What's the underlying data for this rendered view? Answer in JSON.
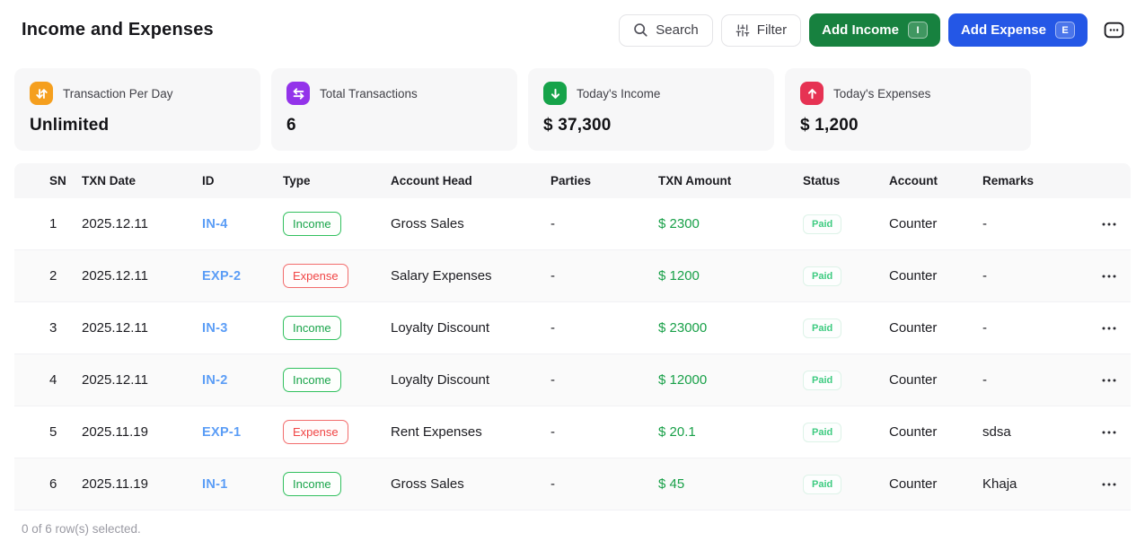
{
  "header": {
    "title": "Income and Expenses",
    "search_label": "Search",
    "filter_label": "Filter",
    "add_income_label": "Add Income",
    "add_income_shortcut": "I",
    "add_expense_label": "Add Expense",
    "add_expense_shortcut": "E"
  },
  "colors": {
    "add_income_bg": "#17813f",
    "add_expense_bg": "#2457e6",
    "id_link_blue": "#5b9df6",
    "amount_green": "#18a048",
    "income_badge_green": "#31c05e",
    "expense_badge_red": "#f04545",
    "paid_badge": "#3ecb81"
  },
  "stats": [
    {
      "label": "Transaction Per Day",
      "value": "Unlimited",
      "icon": "arrows-up-down-icon",
      "color": "#f59f1e"
    },
    {
      "label": "Total Transactions",
      "value": "6",
      "icon": "arrows-left-right-icon",
      "color": "#9333ea"
    },
    {
      "label": "Today's Income",
      "value": "$ 37,300",
      "icon": "arrow-down-icon",
      "color": "#16a34a"
    },
    {
      "label": "Today's Expenses",
      "value": "$ 1,200",
      "icon": "arrow-up-icon",
      "color": "#e63253"
    }
  ],
  "table": {
    "columns": [
      "SN",
      "TXN Date",
      "ID",
      "Type",
      "Account Head",
      "Parties",
      "TXN Amount",
      "Status",
      "Account",
      "Remarks"
    ],
    "rows": [
      {
        "sn": "1",
        "date": "2025.12.11",
        "id": "IN-4",
        "type": "Income",
        "account_head": "Gross Sales",
        "parties": "-",
        "amount": "$ 2300",
        "status": "Paid",
        "account": "Counter",
        "remarks": "-"
      },
      {
        "sn": "2",
        "date": "2025.12.11",
        "id": "EXP-2",
        "type": "Expense",
        "account_head": "Salary Expenses",
        "parties": "-",
        "amount": "$ 1200",
        "status": "Paid",
        "account": "Counter",
        "remarks": "-"
      },
      {
        "sn": "3",
        "date": "2025.12.11",
        "id": "IN-3",
        "type": "Income",
        "account_head": "Loyalty Discount",
        "parties": "-",
        "amount": "$ 23000",
        "status": "Paid",
        "account": "Counter",
        "remarks": "-"
      },
      {
        "sn": "4",
        "date": "2025.12.11",
        "id": "IN-2",
        "type": "Income",
        "account_head": "Loyalty Discount",
        "parties": "-",
        "amount": "$ 12000",
        "status": "Paid",
        "account": "Counter",
        "remarks": "-"
      },
      {
        "sn": "5",
        "date": "2025.11.19",
        "id": "EXP-1",
        "type": "Expense",
        "account_head": "Rent Expenses",
        "parties": "-",
        "amount": "$ 20.1",
        "status": "Paid",
        "account": "Counter",
        "remarks": "sdsa"
      },
      {
        "sn": "6",
        "date": "2025.11.19",
        "id": "IN-1",
        "type": "Income",
        "account_head": "Gross Sales",
        "parties": "-",
        "amount": "$ 45",
        "status": "Paid",
        "account": "Counter",
        "remarks": "Khaja"
      }
    ],
    "selection_summary": "0 of 6 row(s) selected."
  }
}
